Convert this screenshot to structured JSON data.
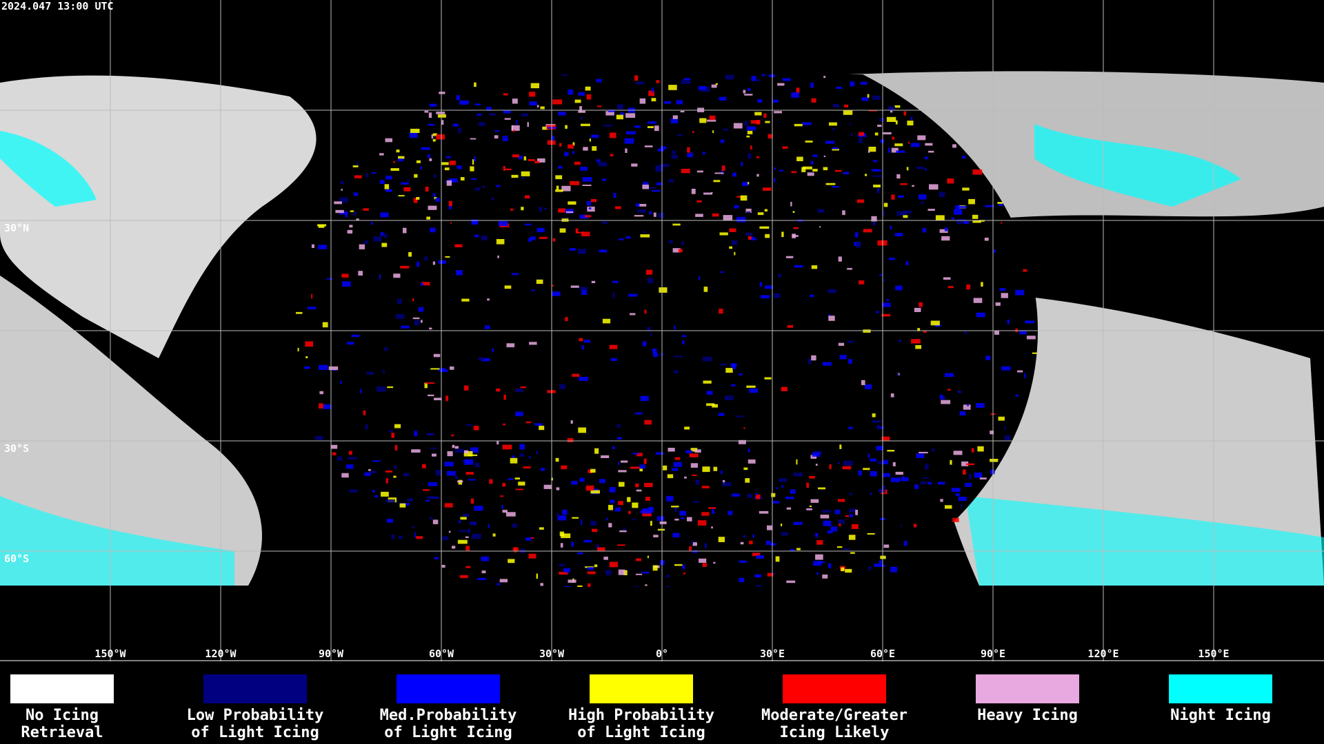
{
  "header": {
    "timestamp": "2024.047 13:00 UTC"
  },
  "grid": {
    "latitude_labels": [
      {
        "lat": 30,
        "label": "30°N"
      },
      {
        "lat": -30,
        "label": "30°S"
      },
      {
        "lat": -60,
        "label": "60°S"
      }
    ],
    "longitude_labels": [
      {
        "lon": -150,
        "label": "150°W"
      },
      {
        "lon": -120,
        "label": "120°W"
      },
      {
        "lon": -90,
        "label": "90°W"
      },
      {
        "lon": -60,
        "label": "60°W"
      },
      {
        "lon": -30,
        "label": "30°W"
      },
      {
        "lon": 0,
        "label": "0°"
      },
      {
        "lon": 30,
        "label": "30°E"
      },
      {
        "lon": 60,
        "label": "60°E"
      },
      {
        "lon": 90,
        "label": "90°E"
      },
      {
        "lon": 120,
        "label": "120°E"
      },
      {
        "lon": 150,
        "label": "150°E"
      }
    ]
  },
  "legend": [
    {
      "lines": [
        "No Icing",
        "Retrieval"
      ],
      "color": "#ffffff"
    },
    {
      "lines": [
        "Low Probability",
        "of Light Icing"
      ],
      "color": "#000080"
    },
    {
      "lines": [
        "Med.Probability",
        "of Light Icing"
      ],
      "color": "#0000ff"
    },
    {
      "lines": [
        "High Probability",
        "of Light Icing"
      ],
      "color": "#ffff00"
    },
    {
      "lines": [
        "Moderate/Greater",
        "Icing Likely"
      ],
      "color": "#ff0000"
    },
    {
      "lines": [
        "Heavy Icing"
      ],
      "color": "#e8a8e0"
    },
    {
      "lines": [
        "Night Icing"
      ],
      "color": "#00ffff"
    }
  ]
}
